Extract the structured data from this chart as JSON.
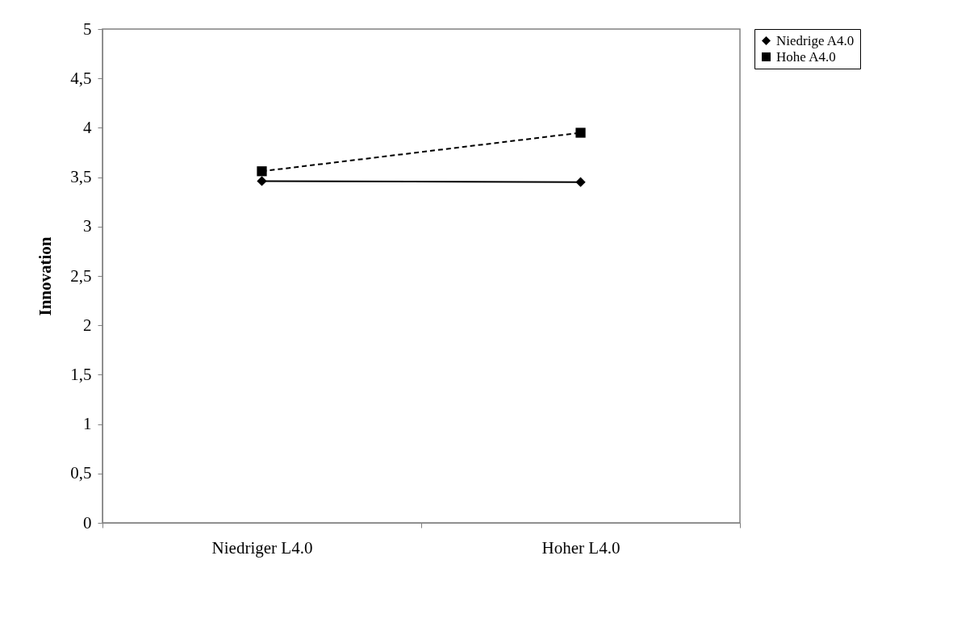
{
  "chart_data": {
    "type": "line",
    "ylabel": "Innovation",
    "categories": [
      "Niedriger L4.0",
      "Hoher L4.0"
    ],
    "series": [
      {
        "name": "Niedrige A4.0",
        "color": "#000000",
        "values": [
          3.46,
          3.45
        ],
        "marker": "diamond",
        "line_style": "solid"
      },
      {
        "name": "Hohe A4.0",
        "color": "#000000",
        "values": [
          3.56,
          3.95
        ],
        "marker": "square",
        "line_style": "dashed"
      }
    ],
    "ylim": [
      0,
      5
    ],
    "yticks": [
      0,
      {
        "value": 0.5,
        "label": "0,5"
      },
      1,
      {
        "value": 1.5,
        "label": "1,5"
      },
      2,
      {
        "value": 2.5,
        "label": "2,5"
      },
      3,
      {
        "value": 3.5,
        "label": "3,5"
      },
      4,
      {
        "value": 4.5,
        "label": "4,5"
      },
      5
    ],
    "grid": false,
    "legend": "right"
  }
}
